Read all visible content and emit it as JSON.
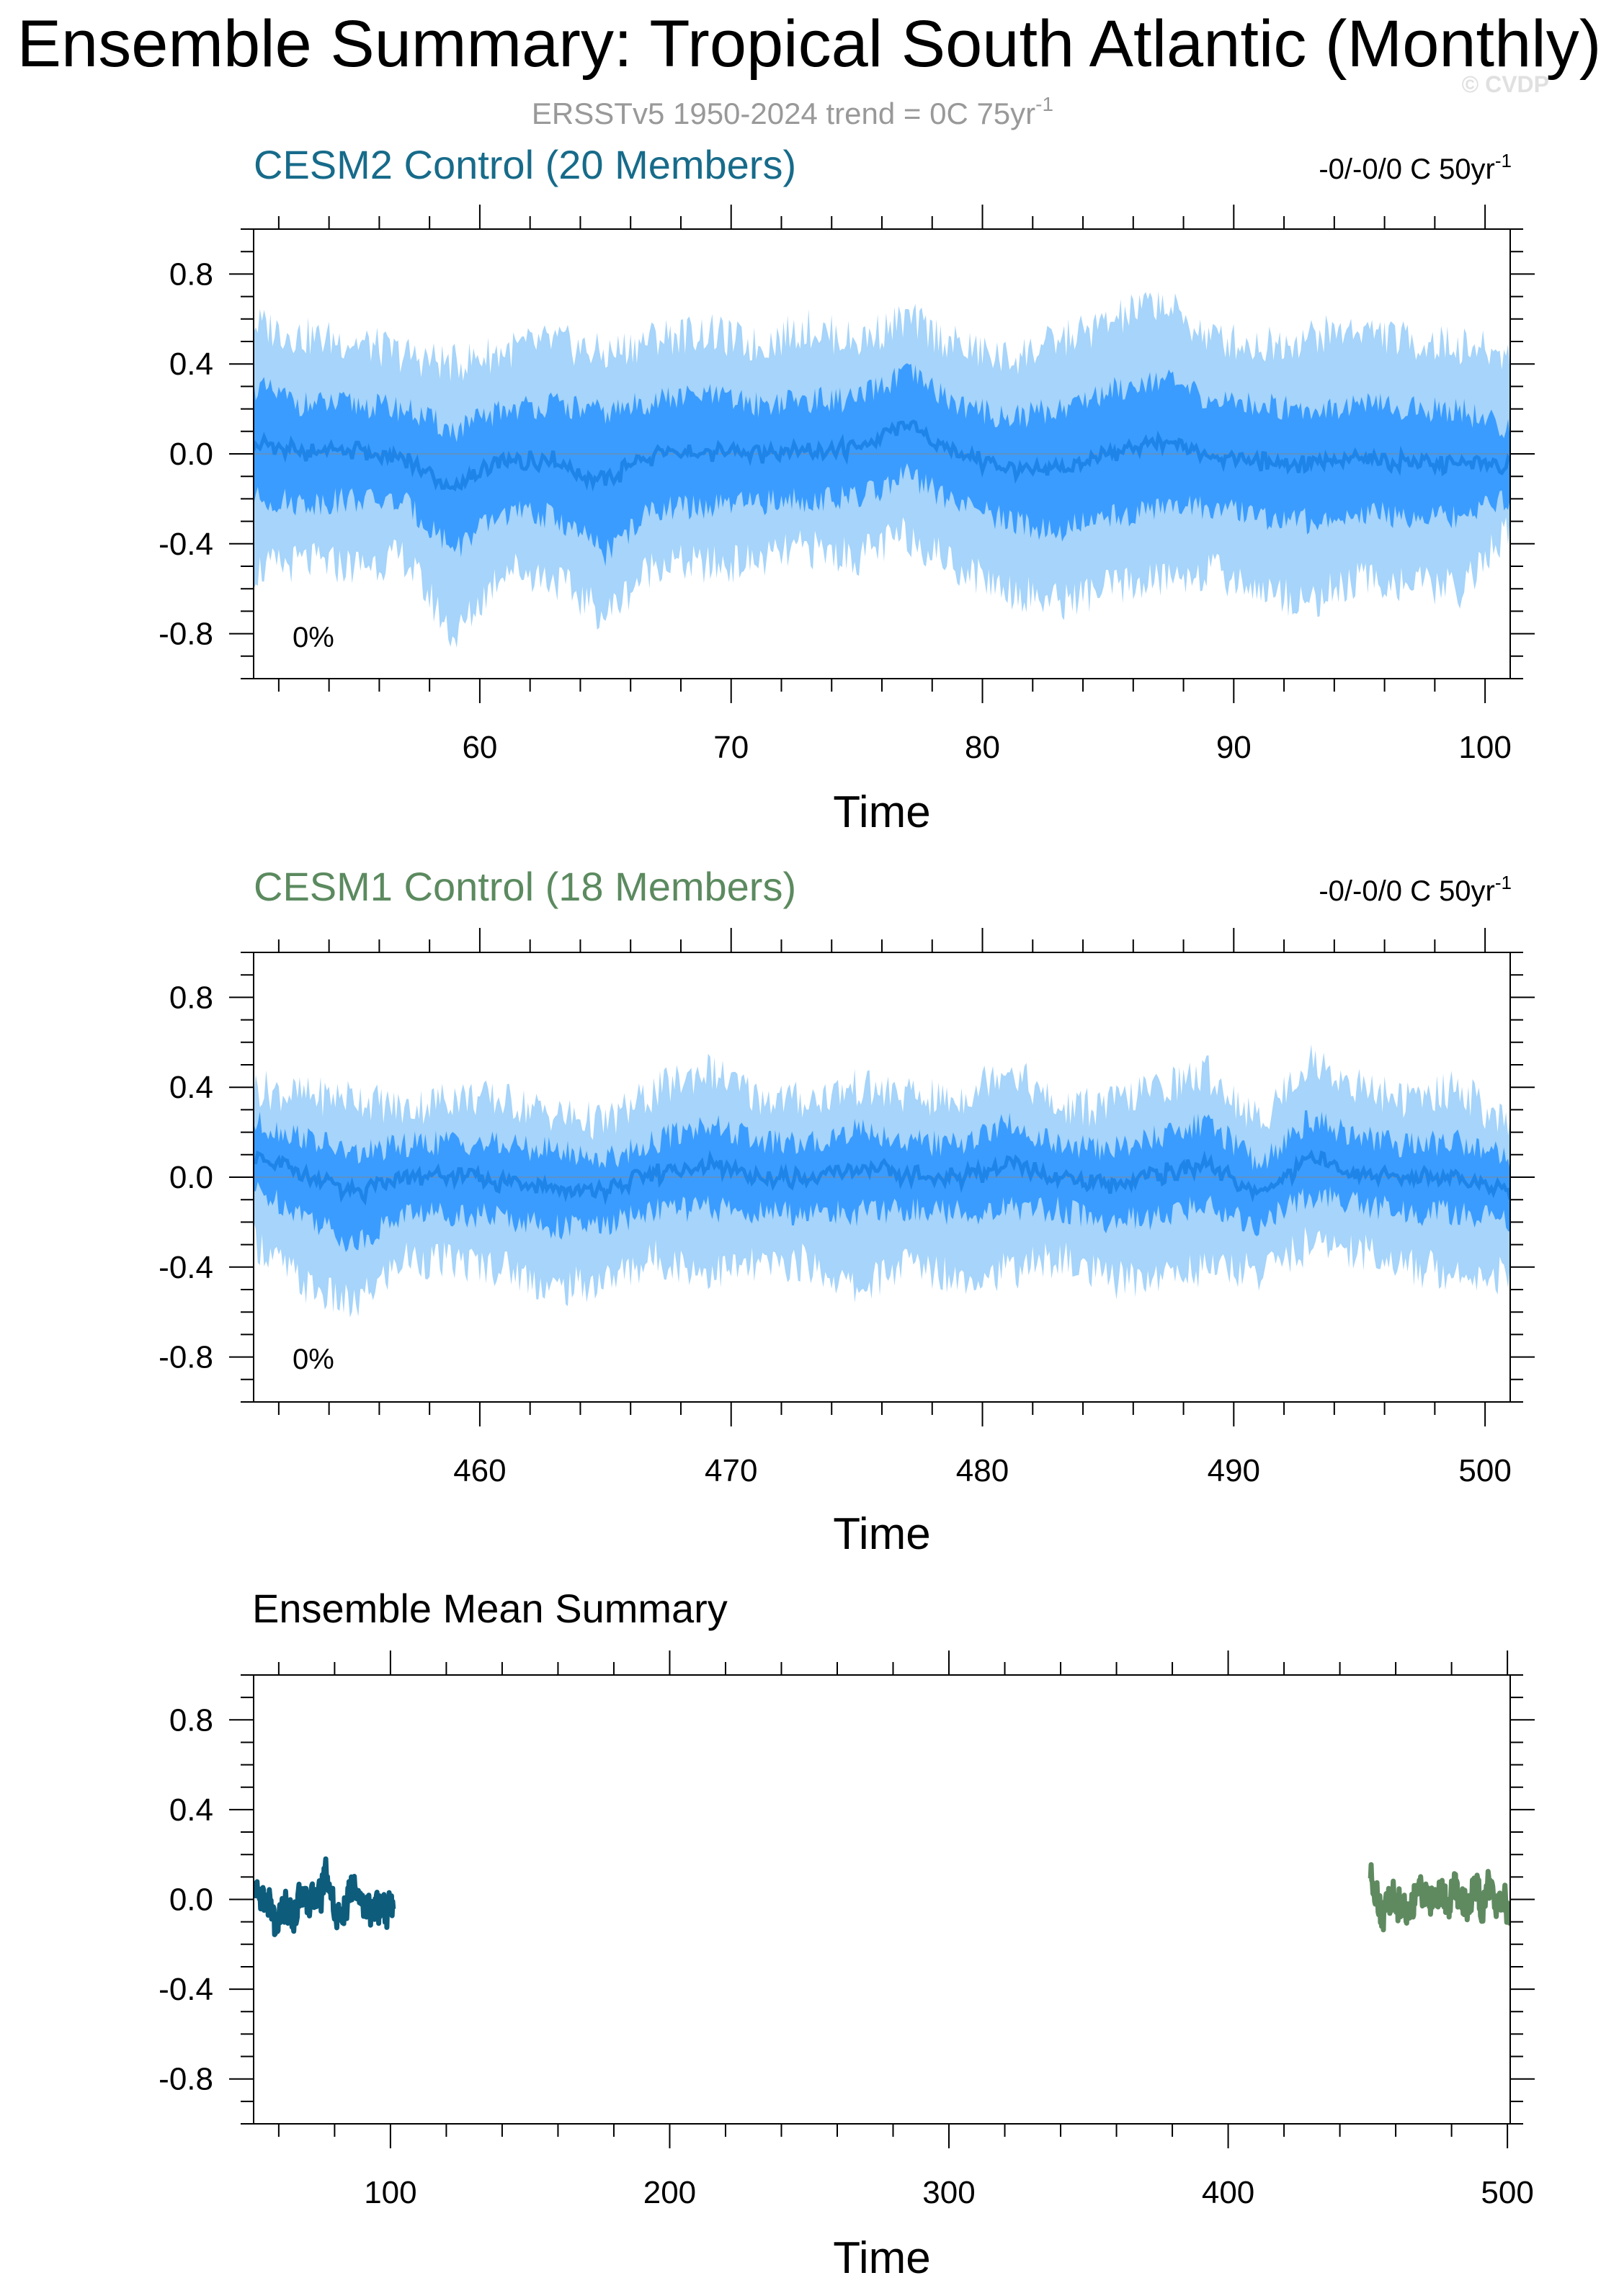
{
  "header": {
    "title": "Ensemble Summary: Tropical South Atlantic (Monthly)",
    "subtitle": "ERSSTv5 1950-2024 trend = 0C 75yr",
    "subtitle_sup": "-1",
    "watermark": "© CVDP"
  },
  "colors": {
    "band_outer": "#a6d4fa",
    "band_inner": "#3a9cff",
    "mean_line": "#1e84e8",
    "cesm2_title": "#176b8a",
    "cesm1_title": "#5b8a5f",
    "cesm2_line": "#0d5c7c",
    "cesm1_line": "#5f8a60",
    "axis": "#000000",
    "subtitle": "#999999"
  },
  "chart_data": [
    {
      "type": "area",
      "title": "CESM2 Control (20 Members)",
      "trend_label": "-0/-0/0 C 50yr",
      "trend_sup": "-1",
      "percent_label": "0%",
      "xlabel": "Time",
      "ylabel": "",
      "xlim": [
        51,
        101
      ],
      "ylim": [
        -1.0,
        1.0
      ],
      "xticks": [
        60,
        70,
        80,
        90,
        100
      ],
      "xtick_labels": [
        "60",
        "70",
        "80",
        "90",
        "100"
      ],
      "yticks": [
        0.8,
        0.4,
        0.0,
        -0.4,
        -0.8
      ],
      "ytick_labels": [
        "0.8",
        "0.4",
        "0.0",
        "-0.4",
        "-0.8"
      ],
      "grid": false,
      "zero_line": true,
      "series": [
        {
          "role": "outer band (min–max)",
          "color": "#a6d4fa",
          "x": [
            51,
            53,
            55,
            57,
            59,
            61,
            63,
            65,
            67,
            69,
            71,
            73,
            75,
            77,
            79,
            81,
            83,
            85,
            87,
            89,
            91,
            93,
            95,
            97,
            99,
            101
          ],
          "upper": [
            0.58,
            0.52,
            0.5,
            0.44,
            0.4,
            0.46,
            0.5,
            0.44,
            0.52,
            0.54,
            0.48,
            0.56,
            0.5,
            0.6,
            0.48,
            0.42,
            0.5,
            0.58,
            0.68,
            0.52,
            0.48,
            0.52,
            0.56,
            0.5,
            0.48,
            0.44
          ],
          "lower": [
            -0.52,
            -0.48,
            -0.5,
            -0.46,
            -0.82,
            -0.5,
            -0.56,
            -0.72,
            -0.48,
            -0.5,
            -0.48,
            -0.42,
            -0.46,
            -0.36,
            -0.5,
            -0.6,
            -0.66,
            -0.6,
            -0.56,
            -0.52,
            -0.6,
            -0.66,
            -0.56,
            -0.58,
            -0.6,
            -0.34
          ]
        },
        {
          "role": "inner band (interquartile)",
          "color": "#3a9cff",
          "x": [
            51,
            53,
            55,
            57,
            59,
            61,
            63,
            65,
            67,
            69,
            71,
            73,
            75,
            77,
            79,
            81,
            83,
            85,
            87,
            89,
            91,
            93,
            95,
            97,
            99,
            101
          ],
          "upper": [
            0.3,
            0.22,
            0.22,
            0.2,
            0.1,
            0.2,
            0.22,
            0.18,
            0.24,
            0.26,
            0.22,
            0.24,
            0.24,
            0.36,
            0.22,
            0.16,
            0.2,
            0.28,
            0.34,
            0.24,
            0.22,
            0.2,
            0.22,
            0.2,
            0.2,
            0.1
          ],
          "lower": [
            -0.2,
            -0.22,
            -0.2,
            -0.22,
            -0.42,
            -0.26,
            -0.28,
            -0.44,
            -0.24,
            -0.24,
            -0.22,
            -0.2,
            -0.2,
            -0.1,
            -0.22,
            -0.3,
            -0.34,
            -0.28,
            -0.24,
            -0.24,
            -0.28,
            -0.3,
            -0.26,
            -0.28,
            -0.28,
            -0.2
          ]
        },
        {
          "role": "ensemble mean",
          "color": "#1e84e8",
          "x": [
            51,
            53,
            55,
            57,
            59,
            61,
            63,
            65,
            67,
            69,
            71,
            73,
            75,
            77,
            79,
            81,
            83,
            85,
            87,
            89,
            91,
            93,
            95,
            97,
            99,
            101
          ],
          "values": [
            0.05,
            0.0,
            0.02,
            -0.02,
            -0.15,
            -0.03,
            -0.03,
            -0.12,
            0.0,
            0.01,
            0.0,
            0.02,
            0.02,
            0.13,
            0.0,
            -0.07,
            -0.07,
            0.0,
            0.05,
            0.0,
            -0.03,
            -0.05,
            -0.02,
            -0.04,
            -0.04,
            -0.05
          ]
        }
      ]
    },
    {
      "type": "area",
      "title": "CESM1 Control (18 Members)",
      "trend_label": "-0/-0/0 C 50yr",
      "trend_sup": "-1",
      "percent_label": "0%",
      "xlabel": "Time",
      "ylabel": "",
      "xlim": [
        451,
        501
      ],
      "ylim": [
        -1.0,
        1.0
      ],
      "xticks": [
        460,
        470,
        480,
        490,
        500
      ],
      "xtick_labels": [
        "460",
        "470",
        "480",
        "490",
        "500"
      ],
      "yticks": [
        0.8,
        0.4,
        0.0,
        -0.4,
        -0.8
      ],
      "ytick_labels": [
        "0.8",
        "0.4",
        "0.0",
        "-0.4",
        "-0.8"
      ],
      "grid": false,
      "zero_line": true,
      "series": [
        {
          "role": "outer band (min–max)",
          "color": "#a6d4fa",
          "x": [
            451,
            453,
            455,
            457,
            459,
            461,
            463,
            465,
            467,
            469,
            471,
            473,
            475,
            477,
            479,
            481,
            483,
            485,
            487,
            489,
            491,
            493,
            495,
            497,
            499,
            501
          ],
          "upper": [
            0.4,
            0.36,
            0.36,
            0.3,
            0.36,
            0.34,
            0.28,
            0.24,
            0.38,
            0.48,
            0.36,
            0.34,
            0.4,
            0.36,
            0.34,
            0.5,
            0.3,
            0.32,
            0.4,
            0.46,
            0.24,
            0.52,
            0.4,
            0.34,
            0.4,
            0.2
          ],
          "lower": [
            -0.28,
            -0.48,
            -0.58,
            -0.36,
            -0.38,
            -0.4,
            -0.5,
            -0.46,
            -0.36,
            -0.42,
            -0.4,
            -0.38,
            -0.5,
            -0.38,
            -0.44,
            -0.42,
            -0.36,
            -0.46,
            -0.44,
            -0.4,
            -0.42,
            -0.3,
            -0.32,
            -0.4,
            -0.42,
            -0.44
          ]
        },
        {
          "role": "inner band (interquartile)",
          "color": "#3a9cff",
          "x": [
            451,
            453,
            455,
            457,
            459,
            461,
            463,
            465,
            467,
            469,
            471,
            473,
            475,
            477,
            479,
            481,
            483,
            485,
            487,
            489,
            491,
            493,
            495,
            497,
            499,
            501
          ],
          "upper": [
            0.24,
            0.18,
            0.1,
            0.14,
            0.16,
            0.14,
            0.12,
            0.08,
            0.16,
            0.24,
            0.16,
            0.14,
            0.22,
            0.16,
            0.14,
            0.24,
            0.14,
            0.12,
            0.18,
            0.24,
            0.06,
            0.26,
            0.18,
            0.14,
            0.16,
            0.08
          ],
          "lower": [
            -0.06,
            -0.16,
            -0.3,
            -0.16,
            -0.16,
            -0.18,
            -0.22,
            -0.22,
            -0.14,
            -0.14,
            -0.16,
            -0.16,
            -0.16,
            -0.14,
            -0.16,
            -0.14,
            -0.14,
            -0.2,
            -0.18,
            -0.12,
            -0.22,
            -0.08,
            -0.12,
            -0.16,
            -0.16,
            -0.2
          ]
        },
        {
          "role": "ensemble mean",
          "color": "#1e84e8",
          "x": [
            451,
            453,
            455,
            457,
            459,
            461,
            463,
            465,
            467,
            469,
            471,
            473,
            475,
            477,
            479,
            481,
            483,
            485,
            487,
            489,
            491,
            493,
            495,
            497,
            499,
            501
          ],
          "values": [
            0.1,
            0.02,
            -0.08,
            0.0,
            0.0,
            -0.02,
            -0.04,
            -0.06,
            0.02,
            0.05,
            0.0,
            -0.01,
            0.04,
            0.01,
            -0.01,
            0.06,
            0.0,
            -0.03,
            0.01,
            0.06,
            -0.08,
            0.08,
            0.03,
            -0.01,
            0.0,
            -0.07
          ]
        }
      ]
    },
    {
      "type": "line",
      "title": "Ensemble Mean Summary",
      "xlabel": "Time",
      "ylabel": "",
      "xlim": [
        51,
        501
      ],
      "ylim": [
        -1.0,
        1.0
      ],
      "xticks": [
        100,
        200,
        300,
        400,
        500
      ],
      "xtick_labels": [
        "100",
        "200",
        "300",
        "400",
        "500"
      ],
      "yticks": [
        0.8,
        0.4,
        0.0,
        -0.4,
        -0.8
      ],
      "ytick_labels": [
        "0.8",
        "0.4",
        "0.0",
        "-0.4",
        "-0.8"
      ],
      "grid": false,
      "series": [
        {
          "color": "#0d5c7c",
          "x": [
            51,
            53,
            55,
            57,
            59,
            61,
            63,
            65,
            67,
            69,
            71,
            73,
            75,
            77,
            79,
            81,
            83,
            85,
            87,
            89,
            91,
            93,
            95,
            97,
            99,
            101
          ],
          "values": [
            0.05,
            0.0,
            0.02,
            -0.02,
            -0.15,
            -0.03,
            -0.03,
            -0.12,
            0.0,
            0.01,
            0.0,
            0.02,
            0.02,
            0.13,
            0.0,
            -0.07,
            -0.07,
            0.0,
            0.05,
            0.0,
            -0.03,
            -0.05,
            -0.02,
            -0.04,
            -0.04,
            -0.05
          ]
        },
        {
          "color": "#5f8a60",
          "x": [
            451,
            453,
            455,
            457,
            459,
            461,
            463,
            465,
            467,
            469,
            471,
            473,
            475,
            477,
            479,
            481,
            483,
            485,
            487,
            489,
            491,
            493,
            495,
            497,
            499,
            501
          ],
          "values": [
            0.1,
            0.02,
            -0.08,
            0.0,
            0.0,
            -0.02,
            -0.04,
            -0.06,
            0.02,
            0.05,
            0.0,
            -0.01,
            0.04,
            0.01,
            -0.01,
            0.06,
            0.0,
            -0.03,
            0.01,
            0.06,
            -0.08,
            0.08,
            0.03,
            -0.01,
            0.0,
            -0.07
          ]
        }
      ]
    }
  ]
}
